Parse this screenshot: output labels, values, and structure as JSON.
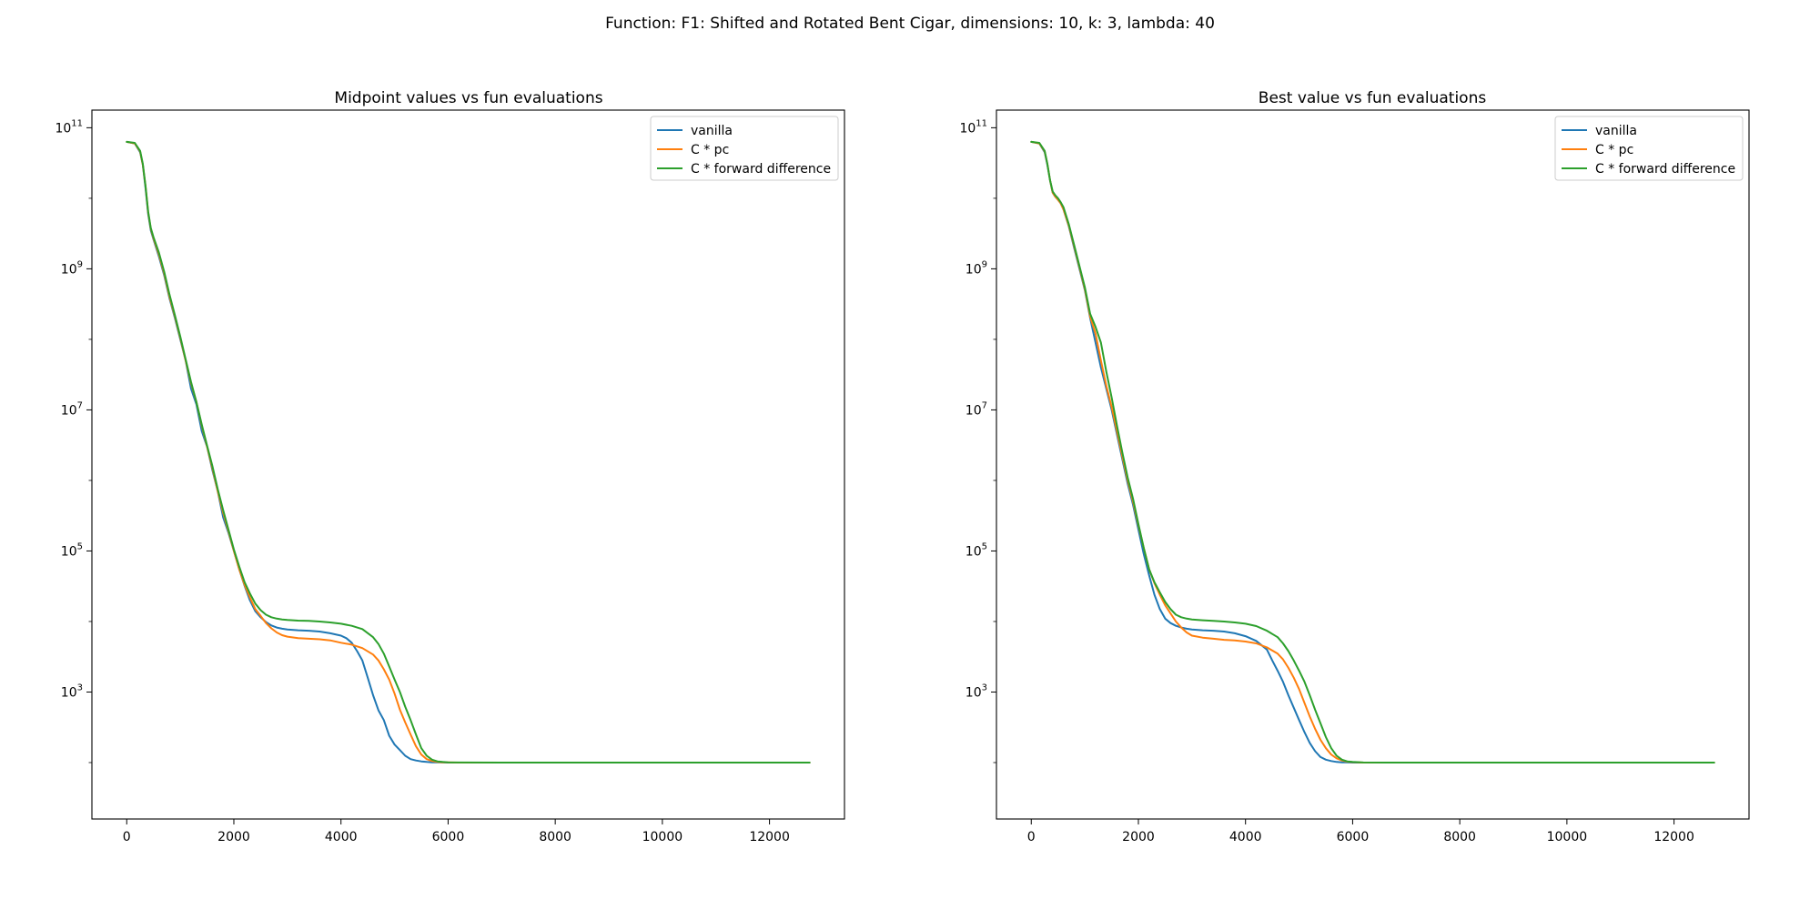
{
  "figure": {
    "suptitle": "Function: F1: Shifted and Rotated Bent Cigar, dimensions: 10, k: 3, lambda: 40"
  },
  "colors": {
    "vanilla": "#1f77b4",
    "c_pc": "#ff7f0e",
    "c_forward_difference": "#2ca02c"
  },
  "chart_data": [
    {
      "type": "line",
      "title": "Midpoint values vs fun evaluations",
      "xlabel": "",
      "ylabel": "",
      "yscale": "log",
      "xlim": [
        -650,
        13400
      ],
      "ylim_log10": [
        1.2,
        11.25
      ],
      "xticks": [
        0,
        2000,
        4000,
        6000,
        8000,
        10000,
        12000
      ],
      "xtick_labels": [
        "0",
        "2000",
        "4000",
        "6000",
        "8000",
        "10000",
        "12000"
      ],
      "yticks_log10": [
        3,
        5,
        7,
        9,
        11
      ],
      "ytick_labels": [
        {
          "base": "10",
          "exp": "3"
        },
        {
          "base": "10",
          "exp": "5"
        },
        {
          "base": "10",
          "exp": "7"
        },
        {
          "base": "10",
          "exp": "9"
        },
        {
          "base": "10",
          "exp": "11"
        }
      ],
      "grid": false,
      "legend": "top-right",
      "series": [
        {
          "name": "vanilla",
          "color_key": "vanilla",
          "x": [
            0,
            150,
            250,
            300,
            350,
            400,
            450,
            500,
            600,
            700,
            800,
            900,
            1000,
            1100,
            1200,
            1300,
            1400,
            1500,
            1600,
            1700,
            1800,
            1900,
            2000,
            2100,
            2200,
            2300,
            2400,
            2500,
            2600,
            2700,
            2800,
            2900,
            3000,
            3200,
            3400,
            3600,
            3800,
            4000,
            4100,
            4200,
            4300,
            4400,
            4500,
            4600,
            4700,
            4800,
            4900,
            5000,
            5100,
            5200,
            5300,
            5400,
            5500,
            5600,
            5700,
            5800,
            5900,
            6000,
            7000,
            8000,
            10000,
            12750
          ],
          "y": [
            63000000000.0,
            60000000000.0,
            45000000000.0,
            30000000000.0,
            14000000000.0,
            6000000000.0,
            3500000000.0,
            2600000000.0,
            1500000000.0,
            800000000.0,
            380000000.0,
            200000000.0,
            100000000.0,
            50000000.0,
            20000000.0,
            12000000.0,
            5000000.0,
            3000000.0,
            1400000.0,
            700000.0,
            300000.0,
            180000.0,
            100000.0,
            55000.0,
            32000.0,
            20000.0,
            14000.0,
            11500.0,
            9800.0,
            8800.0,
            8200.0,
            7900.0,
            7700.0,
            7500.0,
            7400.0,
            7200.0,
            6800.0,
            6300.0,
            5800.0,
            5000.0,
            3800.0,
            2800.0,
            1600.0,
            900,
            550,
            400,
            240,
            180,
            150,
            125,
            112,
            107,
            104,
            102,
            101,
            100.5,
            100.2,
            100,
            100,
            100,
            100,
            100
          ]
        },
        {
          "name": "C * pc",
          "color_key": "c_pc",
          "x": [
            0,
            150,
            250,
            300,
            350,
            400,
            450,
            500,
            600,
            700,
            800,
            900,
            1000,
            1100,
            1200,
            1300,
            1400,
            1500,
            1600,
            1700,
            1800,
            1900,
            2000,
            2100,
            2200,
            2300,
            2400,
            2500,
            2600,
            2700,
            2800,
            2900,
            3000,
            3200,
            3400,
            3600,
            3800,
            4000,
            4200,
            4400,
            4600,
            4700,
            4800,
            4900,
            5000,
            5100,
            5200,
            5300,
            5400,
            5500,
            5600,
            5700,
            5800,
            5900,
            6000,
            6200,
            7000,
            8000,
            10000,
            12750
          ],
          "y": [
            63000000000.0,
            60000000000.0,
            46000000000.0,
            30000000000.0,
            15000000000.0,
            6300000000.0,
            3700000000.0,
            2700000000.0,
            1600000000.0,
            850000000.0,
            400000000.0,
            210000000.0,
            105000000.0,
            50000000.0,
            24000000.0,
            13000000.0,
            6000000.0,
            3000000.0,
            1500000.0,
            700000.0,
            350000.0,
            190000.0,
            100000.0,
            55000.0,
            33000.0,
            22000.0,
            15000.0,
            12000.0,
            9500.0,
            8000.0,
            7000.0,
            6400.0,
            6100.0,
            5800.0,
            5700.0,
            5600.0,
            5400.0,
            5000.0,
            4700.0,
            4200.0,
            3400.0,
            2800.0,
            2100.0,
            1500.0,
            950,
            560,
            370,
            250,
            170,
            130,
            112,
            105,
            102,
            101,
            100.5,
            100,
            100,
            100,
            100,
            100
          ]
        },
        {
          "name": "C * forward difference",
          "color_key": "c_forward_difference",
          "x": [
            0,
            150,
            250,
            300,
            350,
            400,
            450,
            500,
            600,
            700,
            800,
            900,
            1000,
            1100,
            1200,
            1300,
            1400,
            1500,
            1600,
            1700,
            1800,
            1900,
            2000,
            2100,
            2200,
            2300,
            2400,
            2500,
            2600,
            2700,
            2800,
            2900,
            3000,
            3200,
            3400,
            3600,
            3800,
            4000,
            4200,
            4400,
            4600,
            4700,
            4800,
            4900,
            5000,
            5100,
            5200,
            5300,
            5400,
            5500,
            5600,
            5700,
            5800,
            5900,
            6000,
            6200,
            7000,
            8000,
            10000,
            12750
          ],
          "y": [
            63000000000.0,
            61000000000.0,
            47000000000.0,
            31000000000.0,
            15000000000.0,
            6500000000.0,
            3800000000.0,
            2800000000.0,
            1700000000.0,
            900000000.0,
            430000000.0,
            220000000.0,
            110000000.0,
            52000000.0,
            25000000.0,
            13000000.0,
            6200000.0,
            3100000.0,
            1600000.0,
            750000.0,
            380000.0,
            200000.0,
            105000.0,
            60000.0,
            36000.0,
            25000.0,
            18000.0,
            14500.0,
            12500.0,
            11500.0,
            11000.0,
            10700.0,
            10500.0,
            10300.0,
            10200.0,
            10000.0,
            9700.0,
            9300.0,
            8700.0,
            7800.0,
            6000.0,
            4800.0,
            3500.0,
            2300.0,
            1500.0,
            1000.0,
            620,
            400,
            250,
            160,
            125,
            110,
            104,
            102,
            101,
            100.3,
            100,
            100,
            100,
            100
          ]
        }
      ]
    },
    {
      "type": "line",
      "title": "Best value vs fun evaluations",
      "xlabel": "",
      "ylabel": "",
      "yscale": "log",
      "xlim": [
        -650,
        13400
      ],
      "ylim_log10": [
        1.2,
        11.25
      ],
      "xticks": [
        0,
        2000,
        4000,
        6000,
        8000,
        10000,
        12000
      ],
      "xtick_labels": [
        "0",
        "2000",
        "4000",
        "6000",
        "8000",
        "10000",
        "12000"
      ],
      "yticks_log10": [
        3,
        5,
        7,
        9,
        11
      ],
      "ytick_labels": [
        {
          "base": "10",
          "exp": "3"
        },
        {
          "base": "10",
          "exp": "5"
        },
        {
          "base": "10",
          "exp": "7"
        },
        {
          "base": "10",
          "exp": "9"
        },
        {
          "base": "10",
          "exp": "11"
        }
      ],
      "grid": false,
      "legend": "top-right",
      "series": [
        {
          "name": "vanilla",
          "color_key": "vanilla",
          "x": [
            0,
            150,
            250,
            300,
            350,
            400,
            450,
            500,
            550,
            600,
            700,
            800,
            900,
            1000,
            1100,
            1200,
            1300,
            1400,
            1500,
            1600,
            1700,
            1800,
            1900,
            2000,
            2100,
            2200,
            2300,
            2400,
            2500,
            2600,
            2700,
            2800,
            2900,
            3000,
            3200,
            3400,
            3600,
            3800,
            4000,
            4200,
            4400,
            4500,
            4600,
            4700,
            4800,
            4900,
            5000,
            5100,
            5200,
            5300,
            5400,
            5500,
            5600,
            5700,
            5800,
            5900,
            6000,
            7000,
            8000,
            10000,
            12750
          ],
          "y": [
            63000000000.0,
            60000000000.0,
            45000000000.0,
            30000000000.0,
            18000000000.0,
            12000000000.0,
            10500000000.0,
            9500000000.0,
            8500000000.0,
            7000000000.0,
            4000000000.0,
            2000000000.0,
            1000000000.0,
            500000000.0,
            200000000.0,
            90000000.0,
            40000000.0,
            20000000.0,
            10000000.0,
            4500000.0,
            2000000.0,
            900000.0,
            450000.0,
            200000.0,
            90000.0,
            45000.0,
            24000.0,
            15000.0,
            11000.0,
            9500.0,
            8700.0,
            8200.0,
            7900.0,
            7700.0,
            7500.0,
            7400.0,
            7200.0,
            6800.0,
            6200.0,
            5300.0,
            4000.0,
            2800.0,
            2000.0,
            1400.0,
            900,
            600,
            400,
            270,
            190,
            145,
            120,
            110,
            105,
            102,
            101,
            100.5,
            100,
            100,
            100,
            100,
            100
          ]
        },
        {
          "name": "C * pc",
          "color_key": "c_pc",
          "x": [
            0,
            150,
            250,
            300,
            350,
            400,
            450,
            500,
            550,
            600,
            700,
            800,
            900,
            1000,
            1100,
            1200,
            1300,
            1400,
            1500,
            1600,
            1700,
            1800,
            1900,
            2000,
            2100,
            2200,
            2300,
            2400,
            2500,
            2600,
            2700,
            2800,
            2900,
            3000,
            3200,
            3400,
            3600,
            3800,
            4000,
            4200,
            4400,
            4600,
            4700,
            4800,
            4900,
            5000,
            5100,
            5200,
            5300,
            5400,
            5500,
            5600,
            5700,
            5800,
            5900,
            6000,
            6200,
            7000,
            8000,
            10000,
            12750
          ],
          "y": [
            63000000000.0,
            60000000000.0,
            46000000000.0,
            31000000000.0,
            18000000000.0,
            12000000000.0,
            10500000000.0,
            9500000000.0,
            8500000000.0,
            7000000000.0,
            4100000000.0,
            2100000000.0,
            1050000000.0,
            520000000.0,
            210000000.0,
            120000000.0,
            50000000.0,
            22000000.0,
            11000000.0,
            5000000.0,
            2200000.0,
            1000000.0,
            500000.0,
            230000.0,
            110000.0,
            55000.0,
            35000.0,
            24000.0,
            17000.0,
            13000.0,
            10000.0,
            8200.0,
            7000.0,
            6300.0,
            5900.0,
            5700.0,
            5500.0,
            5400.0,
            5200.0,
            4900.0,
            4300.0,
            3500.0,
            2900.0,
            2200.0,
            1600.0,
            1100.0,
            700,
            450,
            300,
            210,
            160,
            130,
            115,
            107,
            103,
            101.5,
            100,
            100,
            100,
            100,
            100
          ]
        },
        {
          "name": "C * forward difference",
          "color_key": "c_forward_difference",
          "x": [
            0,
            150,
            250,
            300,
            350,
            400,
            450,
            500,
            550,
            600,
            700,
            800,
            900,
            1000,
            1100,
            1200,
            1300,
            1400,
            1500,
            1600,
            1700,
            1800,
            1900,
            2000,
            2100,
            2200,
            2300,
            2400,
            2500,
            2600,
            2700,
            2800,
            2900,
            3000,
            3200,
            3400,
            3600,
            3800,
            4000,
            4200,
            4400,
            4600,
            4700,
            4800,
            4900,
            5000,
            5100,
            5200,
            5300,
            5400,
            5500,
            5600,
            5700,
            5800,
            5900,
            6000,
            6200,
            7000,
            8000,
            10000,
            12750
          ],
          "y": [
            63000000000.0,
            61000000000.0,
            47000000000.0,
            31000000000.0,
            18000000000.0,
            12500000000.0,
            11000000000.0,
            10000000000.0,
            8800000000.0,
            7500000000.0,
            4300000000.0,
            2200000000.0,
            1100000000.0,
            550000000.0,
            230000000.0,
            150000000.0,
            90000000.0,
            35000000.0,
            15000000.0,
            6000000.0,
            2500000.0,
            1100000.0,
            550000.0,
            240000.0,
            110000.0,
            55000.0,
            36000.0,
            26000.0,
            19000.0,
            15000.0,
            12500.0,
            11500.0,
            11000.0,
            10700.0,
            10400.0,
            10200.0,
            10000.0,
            9700.0,
            9300.0,
            8600.0,
            7400.0,
            6000.0,
            4900.0,
            3800.0,
            2800.0,
            2000.0,
            1400.0,
            900,
            560,
            360,
            230,
            160,
            125,
            110,
            104,
            102,
            100.3,
            100,
            100,
            100,
            100
          ]
        }
      ]
    }
  ]
}
